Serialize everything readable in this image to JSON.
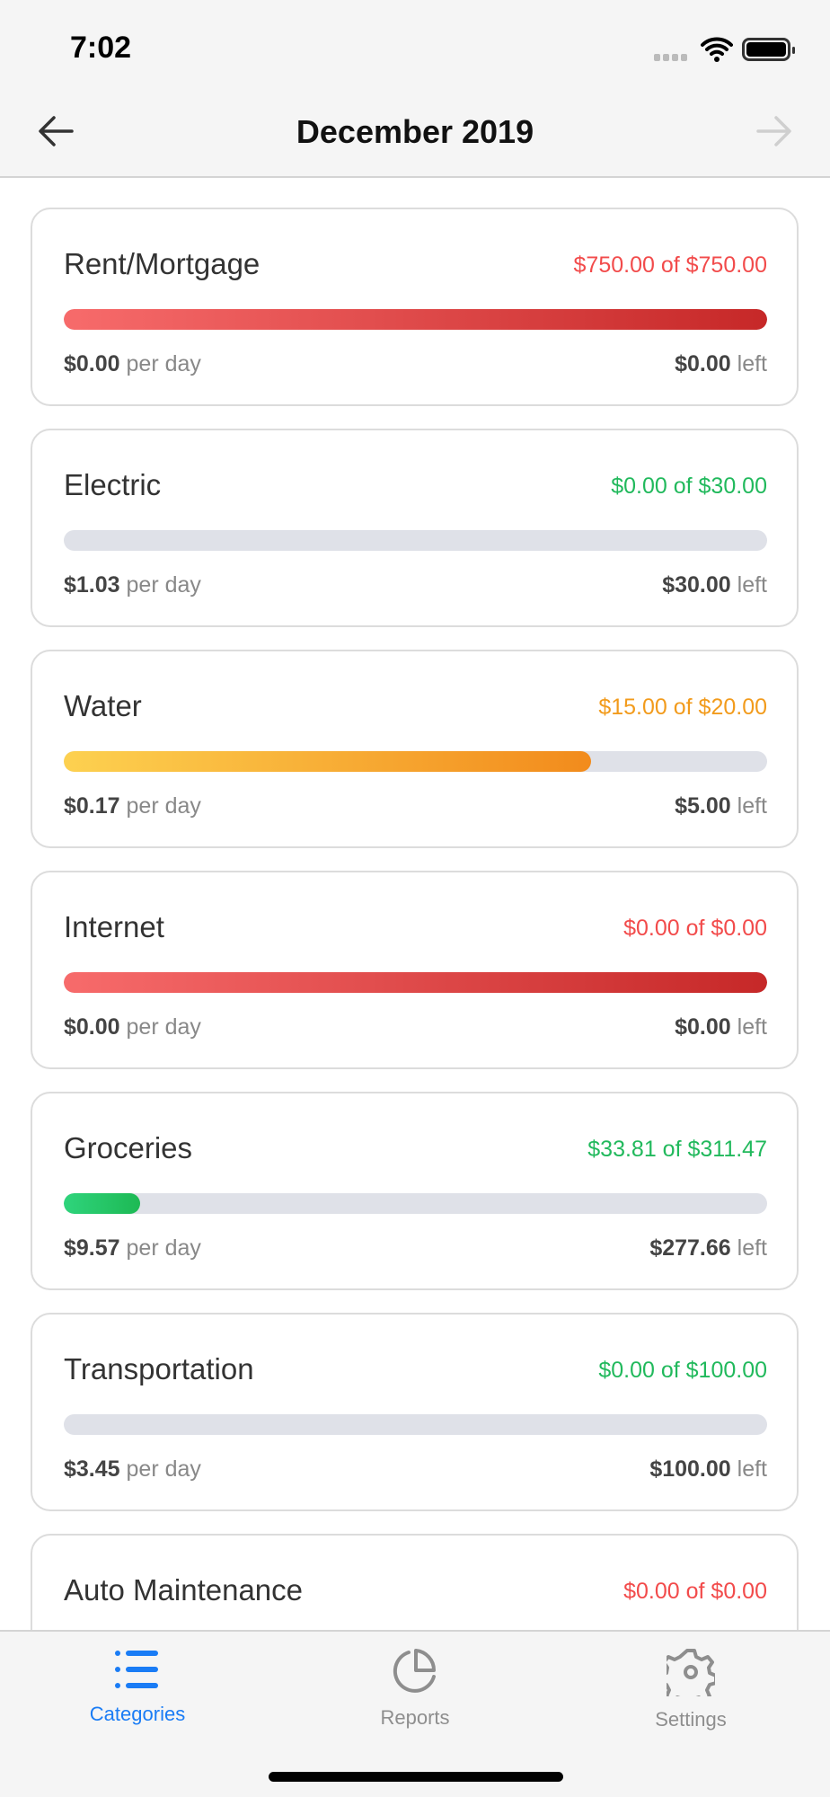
{
  "status_bar": {
    "time": "7:02"
  },
  "header": {
    "title": "December 2019"
  },
  "colors": {
    "red": "#f24b4b",
    "green": "#21b95c",
    "orange": "#f29b1c",
    "track": "#dfe1e8",
    "accent": "#1a7cf5"
  },
  "categories": [
    {
      "name": "Rent/Mortgage",
      "amount": "$750.00 of $750.00",
      "status": "red",
      "progress": 1.0,
      "per_day": "$0.00",
      "per_day_label": "per day",
      "left": "$0.00",
      "left_label": "left"
    },
    {
      "name": "Electric",
      "amount": "$0.00 of $30.00",
      "status": "green",
      "progress": 0,
      "per_day": "$1.03",
      "per_day_label": "per day",
      "left": "$30.00",
      "left_label": "left"
    },
    {
      "name": "Water",
      "amount": "$15.00 of $20.00",
      "status": "orange",
      "progress": 0.75,
      "per_day": "$0.17",
      "per_day_label": "per day",
      "left": "$5.00",
      "left_label": "left"
    },
    {
      "name": "Internet",
      "amount": "$0.00 of $0.00",
      "status": "red",
      "progress": 1.0,
      "per_day": "$0.00",
      "per_day_label": "per day",
      "left": "$0.00",
      "left_label": "left"
    },
    {
      "name": "Groceries",
      "amount": "$33.81 of $311.47",
      "status": "green",
      "progress": 0.1085,
      "per_day": "$9.57",
      "per_day_label": "per day",
      "left": "$277.66",
      "left_label": "left"
    },
    {
      "name": "Transportation",
      "amount": "$0.00 of $100.00",
      "status": "green",
      "progress": 0,
      "per_day": "$3.45",
      "per_day_label": "per day",
      "left": "$100.00",
      "left_label": "left"
    },
    {
      "name": "Auto Maintenance",
      "amount": "$0.00 of $0.00",
      "status": "red",
      "progress": 1.0
    }
  ],
  "tabs": [
    {
      "label": "Categories",
      "icon": "list-icon",
      "active": true
    },
    {
      "label": "Reports",
      "icon": "pie-chart-icon",
      "active": false
    },
    {
      "label": "Settings",
      "icon": "gear-icon",
      "active": false
    }
  ]
}
